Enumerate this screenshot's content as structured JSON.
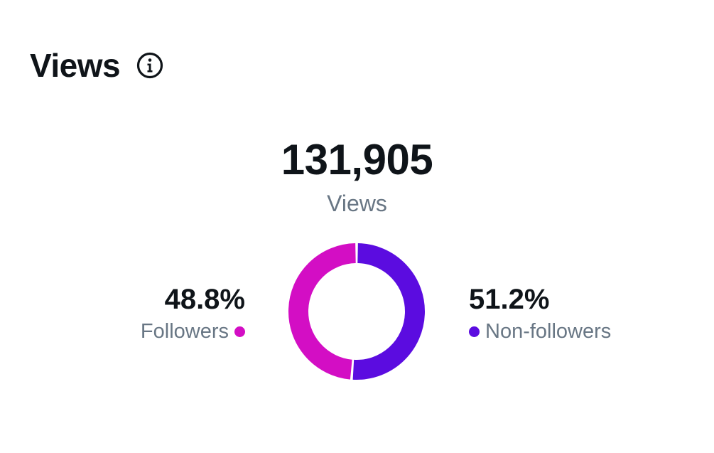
{
  "header": {
    "title": "Views",
    "info_icon": "info-circle-icon"
  },
  "total": {
    "value": "131,905",
    "label": "Views"
  },
  "chart_data": {
    "type": "pie",
    "donut": true,
    "categories": [
      "Followers",
      "Non-followers"
    ],
    "values": [
      48.8,
      51.2
    ],
    "value_labels": [
      "48.8%",
      "51.2%"
    ],
    "colors": [
      "#d30ec4",
      "#5b0ce0"
    ],
    "legend_placement": "sides"
  }
}
